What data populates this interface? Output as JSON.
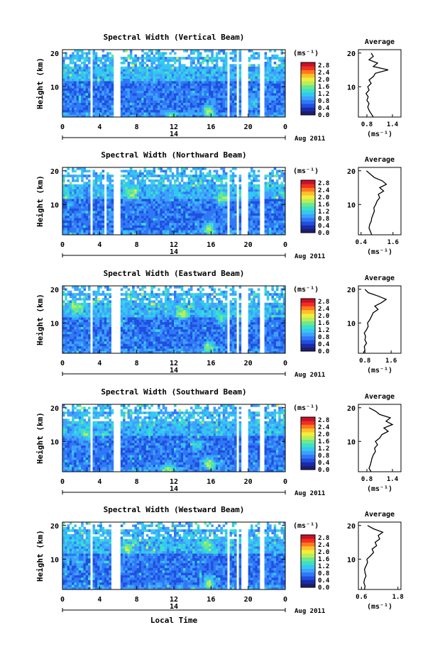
{
  "figure": {
    "date_label": "Aug 2011",
    "day_label": "14",
    "bottom_xlabel": "Local Time"
  },
  "colors": {
    "scale": [
      "#1e1e6e",
      "#1a2aa8",
      "#1f4fe0",
      "#2f78f5",
      "#3fa0ff",
      "#33c8f0",
      "#3ce0c8",
      "#6ee88c",
      "#b8ee5a",
      "#f0ee3c",
      "#ffc02a",
      "#ff7a1e",
      "#f03020",
      "#c8102a"
    ]
  },
  "chart_data": [
    {
      "type": "heatmap",
      "title": "Spectral Width (Vertical Beam)",
      "ylabel": "Height (km)",
      "colorbar_unit": "(ms⁻¹)",
      "colorbar_ticks": [
        "2.8",
        "2.4",
        "2.0",
        "1.6",
        "1.2",
        "0.8",
        "0.4",
        "0.0"
      ],
      "xticks": [
        "0",
        "4",
        "8",
        "12",
        "16",
        "20",
        "0"
      ],
      "yticks": [
        "20",
        "10"
      ],
      "xlim": [
        0,
        24
      ],
      "ylim": [
        1,
        21
      ],
      "gaps": [
        [
          3.0,
          3.2
        ],
        [
          5.5,
          6.3
        ],
        [
          17.7,
          18.1
        ],
        [
          18.7,
          19.1
        ],
        [
          19.3,
          19.9
        ],
        [
          21.3,
          21.7
        ]
      ],
      "hotspots": [
        [
          15.8,
          3.0,
          1.0
        ],
        [
          11.8,
          1.4,
          0.7
        ],
        [
          20.5,
          5.2,
          0.5
        ]
      ],
      "average": {
        "title": "Average",
        "xlabel": "(ms⁻¹)",
        "xticks": [
          "0.8",
          "1.4"
        ],
        "xlim": [
          0.6,
          1.6
        ],
        "yticks": [
          "20",
          "10"
        ],
        "profile": [
          [
            1,
            0.95
          ],
          [
            2,
            0.9
          ],
          [
            3,
            0.85
          ],
          [
            4,
            0.82
          ],
          [
            5,
            0.85
          ],
          [
            6,
            0.8
          ],
          [
            7,
            0.83
          ],
          [
            8,
            0.78
          ],
          [
            9,
            0.85
          ],
          [
            10,
            0.82
          ],
          [
            11,
            0.9
          ],
          [
            12,
            0.85
          ],
          [
            13,
            0.95
          ],
          [
            14,
            1.0
          ],
          [
            15,
            1.3
          ],
          [
            16,
            0.95
          ],
          [
            17,
            1.05
          ],
          [
            18,
            0.85
          ],
          [
            19,
            0.95
          ],
          [
            20,
            0.9
          ]
        ]
      }
    },
    {
      "type": "heatmap",
      "title": "Spectral Width (Northward Beam)",
      "ylabel": "Height (km)",
      "colorbar_unit": "(ms⁻¹)",
      "colorbar_ticks": [
        "2.8",
        "2.4",
        "2.0",
        "1.6",
        "1.2",
        "0.8",
        "0.4",
        "0.0"
      ],
      "xticks": [
        "0",
        "4",
        "8",
        "12",
        "16",
        "20",
        "0"
      ],
      "yticks": [
        "20",
        "10"
      ],
      "xlim": [
        0,
        24
      ],
      "ylim": [
        1,
        21
      ],
      "gaps": [
        [
          3.0,
          3.2
        ],
        [
          4.6,
          4.8
        ],
        [
          5.5,
          6.3
        ],
        [
          17.7,
          18.1
        ],
        [
          18.7,
          19.1
        ],
        [
          19.3,
          19.9
        ],
        [
          21.3,
          21.7
        ]
      ],
      "hotspots": [
        [
          15.8,
          3.0,
          1.0
        ],
        [
          17.2,
          11.5,
          0.9
        ],
        [
          7.5,
          13.5,
          0.6
        ],
        [
          19.5,
          13.0,
          0.5
        ]
      ],
      "average": {
        "title": "Average",
        "xlabel": "(ms⁻¹)",
        "xticks": [
          "0.4",
          "1.6"
        ],
        "xlim": [
          0.3,
          1.9
        ],
        "yticks": [
          "20",
          "10"
        ],
        "profile": [
          [
            1,
            0.8
          ],
          [
            2,
            0.75
          ],
          [
            3,
            0.7
          ],
          [
            4,
            0.72
          ],
          [
            5,
            0.78
          ],
          [
            6,
            0.8
          ],
          [
            7,
            0.85
          ],
          [
            8,
            0.9
          ],
          [
            9,
            0.88
          ],
          [
            10,
            0.95
          ],
          [
            11,
            1.0
          ],
          [
            12,
            1.1
          ],
          [
            13,
            1.05
          ],
          [
            14,
            1.25
          ],
          [
            15,
            1.1
          ],
          [
            16,
            1.35
          ],
          [
            17,
            1.2
          ],
          [
            18,
            0.9
          ],
          [
            19,
            0.75
          ],
          [
            20,
            0.6
          ]
        ]
      }
    },
    {
      "type": "heatmap",
      "title": "Spectral Width (Eastward Beam)",
      "ylabel": "Height (km)",
      "colorbar_unit": "(ms⁻¹)",
      "colorbar_ticks": [
        "2.8",
        "2.4",
        "2.0",
        "1.6",
        "1.2",
        "0.8",
        "0.4",
        "0.0"
      ],
      "xticks": [
        "0",
        "4",
        "8",
        "12",
        "16",
        "20",
        "0"
      ],
      "yticks": [
        "20",
        "10"
      ],
      "xlim": [
        0,
        24
      ],
      "ylim": [
        1,
        21
      ],
      "gaps": [
        [
          3.0,
          3.2
        ],
        [
          5.2,
          5.4
        ],
        [
          5.5,
          6.3
        ],
        [
          17.7,
          18.1
        ],
        [
          18.7,
          19.1
        ],
        [
          19.3,
          19.9
        ],
        [
          21.3,
          21.7
        ]
      ],
      "hotspots": [
        [
          15.8,
          3.0,
          1.0
        ],
        [
          13.0,
          12.5,
          0.8
        ],
        [
          1.5,
          14.5,
          0.7
        ],
        [
          17.2,
          11.0,
          0.6
        ]
      ],
      "average": {
        "title": "Average",
        "xlabel": "(ms⁻¹)",
        "xticks": [
          "0.8",
          "1.6"
        ],
        "xlim": [
          0.6,
          1.9
        ],
        "yticks": [
          "20",
          "10"
        ],
        "profile": [
          [
            1,
            0.75
          ],
          [
            2,
            0.8
          ],
          [
            3,
            0.78
          ],
          [
            4,
            0.85
          ],
          [
            5,
            0.8
          ],
          [
            6,
            0.82
          ],
          [
            7,
            0.78
          ],
          [
            8,
            0.85
          ],
          [
            9,
            0.9
          ],
          [
            10,
            0.88
          ],
          [
            11,
            0.95
          ],
          [
            12,
            1.0
          ],
          [
            13,
            1.05
          ],
          [
            14,
            1.2
          ],
          [
            15,
            1.1
          ],
          [
            16,
            1.3
          ],
          [
            17,
            1.45
          ],
          [
            18,
            1.2
          ],
          [
            19,
            0.9
          ],
          [
            20,
            0.8
          ]
        ]
      }
    },
    {
      "type": "heatmap",
      "title": "Spectral Width (Southward Beam)",
      "ylabel": "Height (km)",
      "colorbar_unit": "(ms⁻¹)",
      "colorbar_ticks": [
        "2.8",
        "2.4",
        "2.0",
        "1.6",
        "1.2",
        "0.8",
        "0.4",
        "0.0"
      ],
      "xticks": [
        "0",
        "4",
        "8",
        "12",
        "16",
        "20",
        "0"
      ],
      "yticks": [
        "20",
        "10"
      ],
      "xlim": [
        0,
        24
      ],
      "ylim": [
        1,
        21
      ],
      "gaps": [
        [
          3.0,
          3.2
        ],
        [
          5.5,
          6.3
        ],
        [
          18.7,
          19.1
        ],
        [
          19.3,
          19.9
        ],
        [
          21.3,
          21.7
        ]
      ],
      "hotspots": [
        [
          15.8,
          3.5,
          1.0
        ],
        [
          11.5,
          2.0,
          0.8
        ],
        [
          14.5,
          9.0,
          0.6
        ],
        [
          2.5,
          12.0,
          0.6
        ]
      ],
      "average": {
        "title": "Average",
        "xlabel": "(ms⁻¹)",
        "xticks": [
          "0.8",
          "1.4"
        ],
        "xlim": [
          0.6,
          1.6
        ],
        "yticks": [
          "20",
          "10"
        ],
        "profile": [
          [
            1,
            0.9
          ],
          [
            2,
            0.85
          ],
          [
            3,
            0.88
          ],
          [
            4,
            0.9
          ],
          [
            5,
            0.92
          ],
          [
            6,
            0.95
          ],
          [
            7,
            1.0
          ],
          [
            8,
            0.98
          ],
          [
            9,
            1.05
          ],
          [
            10,
            1.0
          ],
          [
            11,
            1.1
          ],
          [
            12,
            1.15
          ],
          [
            13,
            1.3
          ],
          [
            14,
            1.2
          ],
          [
            15,
            1.4
          ],
          [
            16,
            1.25
          ],
          [
            17,
            1.35
          ],
          [
            18,
            1.1
          ],
          [
            19,
            1.0
          ],
          [
            20,
            0.85
          ]
        ]
      }
    },
    {
      "type": "heatmap",
      "title": "Spectral Width (Westward Beam)",
      "ylabel": "Height (km)",
      "colorbar_unit": "(ms⁻¹)",
      "colorbar_ticks": [
        "2.8",
        "2.4",
        "2.0",
        "1.6",
        "1.2",
        "0.8",
        "0.4",
        "0.0"
      ],
      "xticks": [
        "0",
        "4",
        "8",
        "12",
        "16",
        "20",
        "0"
      ],
      "yticks": [
        "20",
        "10"
      ],
      "xlim": [
        0,
        24
      ],
      "ylim": [
        1,
        21
      ],
      "gaps": [
        [
          3.0,
          3.2
        ],
        [
          5.2,
          5.4
        ],
        [
          5.5,
          6.3
        ],
        [
          17.7,
          18.1
        ],
        [
          18.7,
          19.1
        ],
        [
          19.3,
          19.9
        ],
        [
          21.3,
          21.7
        ]
      ],
      "hotspots": [
        [
          15.8,
          3.0,
          1.0
        ],
        [
          7.0,
          13.0,
          0.7
        ],
        [
          15.5,
          14.0,
          0.6
        ],
        [
          1.5,
          10.0,
          0.5
        ]
      ],
      "average": {
        "title": "Average",
        "xlabel": "(ms⁻¹)",
        "xticks": [
          "0.6",
          "1.8"
        ],
        "xlim": [
          0.5,
          1.9
        ],
        "yticks": [
          "20",
          "10"
        ],
        "profile": [
          [
            1,
            0.7
          ],
          [
            2,
            0.72
          ],
          [
            3,
            0.68
          ],
          [
            4,
            0.7
          ],
          [
            5,
            0.75
          ],
          [
            6,
            0.72
          ],
          [
            7,
            0.7
          ],
          [
            8,
            0.75
          ],
          [
            9,
            0.8
          ],
          [
            10,
            0.78
          ],
          [
            11,
            0.9
          ],
          [
            12,
            1.0
          ],
          [
            13,
            0.95
          ],
          [
            14,
            1.1
          ],
          [
            15,
            1.05
          ],
          [
            16,
            1.2
          ],
          [
            17,
            1.15
          ],
          [
            18,
            1.3
          ],
          [
            19,
            1.0
          ],
          [
            20,
            0.8
          ]
        ]
      }
    }
  ]
}
